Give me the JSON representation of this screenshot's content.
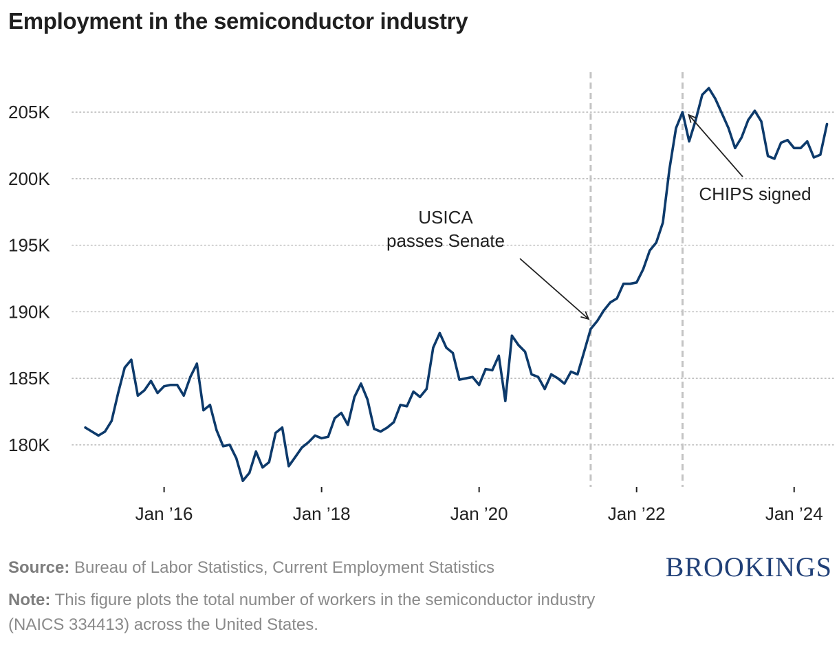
{
  "header": {
    "title": "Employment in the semiconductor industry"
  },
  "chart_data": {
    "type": "line",
    "title": "Employment in the semiconductor industry",
    "xlabel": "",
    "ylabel": "",
    "series": [
      {
        "values": [
          [
            "2015-01",
            181.3
          ],
          [
            "2015-02",
            181.0
          ],
          [
            "2015-03",
            180.7
          ],
          [
            "2015-04",
            181.0
          ],
          [
            "2015-05",
            181.8
          ],
          [
            "2015-06",
            183.9
          ],
          [
            "2015-07",
            185.8
          ],
          [
            "2015-08",
            186.4
          ],
          [
            "2015-09",
            183.7
          ],
          [
            "2015-10",
            184.1
          ],
          [
            "2015-11",
            184.8
          ],
          [
            "2015-12",
            183.9
          ],
          [
            "2016-01",
            184.4
          ],
          [
            "2016-02",
            184.5
          ],
          [
            "2016-03",
            184.5
          ],
          [
            "2016-04",
            183.7
          ],
          [
            "2016-05",
            185.1
          ],
          [
            "2016-06",
            186.1
          ],
          [
            "2016-07",
            182.6
          ],
          [
            "2016-08",
            183.0
          ],
          [
            "2016-09",
            181.1
          ],
          [
            "2016-10",
            179.9
          ],
          [
            "2016-11",
            180.0
          ],
          [
            "2016-12",
            179.0
          ],
          [
            "2017-01",
            177.3
          ],
          [
            "2017-02",
            177.9
          ],
          [
            "2017-03",
            179.5
          ],
          [
            "2017-04",
            178.3
          ],
          [
            "2017-05",
            178.7
          ],
          [
            "2017-06",
            180.9
          ],
          [
            "2017-07",
            181.3
          ],
          [
            "2017-08",
            178.4
          ],
          [
            "2017-09",
            179.1
          ],
          [
            "2017-10",
            179.8
          ],
          [
            "2017-11",
            180.2
          ],
          [
            "2017-12",
            180.7
          ],
          [
            "2018-01",
            180.5
          ],
          [
            "2018-02",
            180.6
          ],
          [
            "2018-03",
            182.0
          ],
          [
            "2018-04",
            182.4
          ],
          [
            "2018-05",
            181.5
          ],
          [
            "2018-06",
            183.6
          ],
          [
            "2018-07",
            184.6
          ],
          [
            "2018-08",
            183.4
          ],
          [
            "2018-09",
            181.2
          ],
          [
            "2018-10",
            181.0
          ],
          [
            "2018-11",
            181.3
          ],
          [
            "2018-12",
            181.7
          ],
          [
            "2019-01",
            183.0
          ],
          [
            "2019-02",
            182.9
          ],
          [
            "2019-03",
            184.0
          ],
          [
            "2019-04",
            183.6
          ],
          [
            "2019-05",
            184.2
          ],
          [
            "2019-06",
            187.3
          ],
          [
            "2019-07",
            188.4
          ],
          [
            "2019-08",
            187.3
          ],
          [
            "2019-09",
            186.9
          ],
          [
            "2019-10",
            184.9
          ],
          [
            "2019-11",
            185.0
          ],
          [
            "2019-12",
            185.1
          ],
          [
            "2020-01",
            184.5
          ],
          [
            "2020-02",
            185.7
          ],
          [
            "2020-03",
            185.6
          ],
          [
            "2020-04",
            186.7
          ],
          [
            "2020-05",
            183.3
          ],
          [
            "2020-06",
            188.2
          ],
          [
            "2020-07",
            187.5
          ],
          [
            "2020-08",
            187.0
          ],
          [
            "2020-09",
            185.3
          ],
          [
            "2020-10",
            185.1
          ],
          [
            "2020-11",
            184.2
          ],
          [
            "2020-12",
            185.3
          ],
          [
            "2021-01",
            185.0
          ],
          [
            "2021-02",
            184.6
          ],
          [
            "2021-03",
            185.5
          ],
          [
            "2021-04",
            185.3
          ],
          [
            "2021-05",
            187.0
          ],
          [
            "2021-06",
            188.7
          ],
          [
            "2021-07",
            189.3
          ],
          [
            "2021-08",
            190.1
          ],
          [
            "2021-09",
            190.7
          ],
          [
            "2021-10",
            191.0
          ],
          [
            "2021-11",
            192.1
          ],
          [
            "2021-12",
            192.1
          ],
          [
            "2022-01",
            192.2
          ],
          [
            "2022-02",
            193.2
          ],
          [
            "2022-03",
            194.6
          ],
          [
            "2022-04",
            195.2
          ],
          [
            "2022-05",
            196.7
          ],
          [
            "2022-06",
            200.7
          ],
          [
            "2022-07",
            203.8
          ],
          [
            "2022-08",
            205.0
          ],
          [
            "2022-09",
            202.8
          ],
          [
            "2022-10",
            204.4
          ],
          [
            "2022-11",
            206.3
          ],
          [
            "2022-12",
            206.8
          ],
          [
            "2023-01",
            206.0
          ],
          [
            "2023-02",
            204.9
          ],
          [
            "2023-03",
            203.8
          ],
          [
            "2023-04",
            202.3
          ],
          [
            "2023-05",
            203.1
          ],
          [
            "2023-06",
            204.4
          ],
          [
            "2023-07",
            205.1
          ],
          [
            "2023-08",
            204.3
          ],
          [
            "2023-09",
            201.7
          ],
          [
            "2023-10",
            201.5
          ],
          [
            "2023-11",
            202.7
          ],
          [
            "2023-12",
            202.9
          ],
          [
            "2024-01",
            202.3
          ],
          [
            "2024-02",
            202.3
          ],
          [
            "2024-03",
            202.8
          ],
          [
            "2024-04",
            201.6
          ],
          [
            "2024-05",
            201.8
          ],
          [
            "2024-06",
            204.1
          ]
        ]
      }
    ],
    "x_units": "month",
    "y_units": "thousands of workers",
    "ylim": [
      177,
      208
    ],
    "xlim": [
      "2014-11",
      "2024-07"
    ],
    "yticks": [
      180,
      185,
      190,
      195,
      200,
      205
    ],
    "ytick_labels": [
      "180K",
      "185K",
      "190K",
      "195K",
      "200K",
      "205K"
    ],
    "xticks": [
      "2016-01",
      "2018-01",
      "2020-01",
      "2022-01",
      "2024-01"
    ],
    "xtick_labels": [
      "Jan ’16",
      "Jan ’18",
      "Jan ’20",
      "Jan ’22",
      "Jan ’24"
    ],
    "grid": "horizontal dotted",
    "legend": "none",
    "line_color": "#0d3a6b",
    "events": [
      {
        "date": "2021-06",
        "label_lines": [
          "USICA",
          "passes Senate"
        ]
      },
      {
        "date": "2022-08",
        "label_lines": [
          "CHIPS signed"
        ]
      }
    ],
    "event_line_color": "#c4c4c4"
  },
  "footer": {
    "source_label": "Source:",
    "source_text": " Bureau of Labor Statistics, Current Employment Statistics",
    "note_label": "Note:",
    "note_text": " This figure plots the total number of workers in the semiconductor industry (NAICS 334413) across the United States.",
    "logo": "BROOKINGS"
  }
}
